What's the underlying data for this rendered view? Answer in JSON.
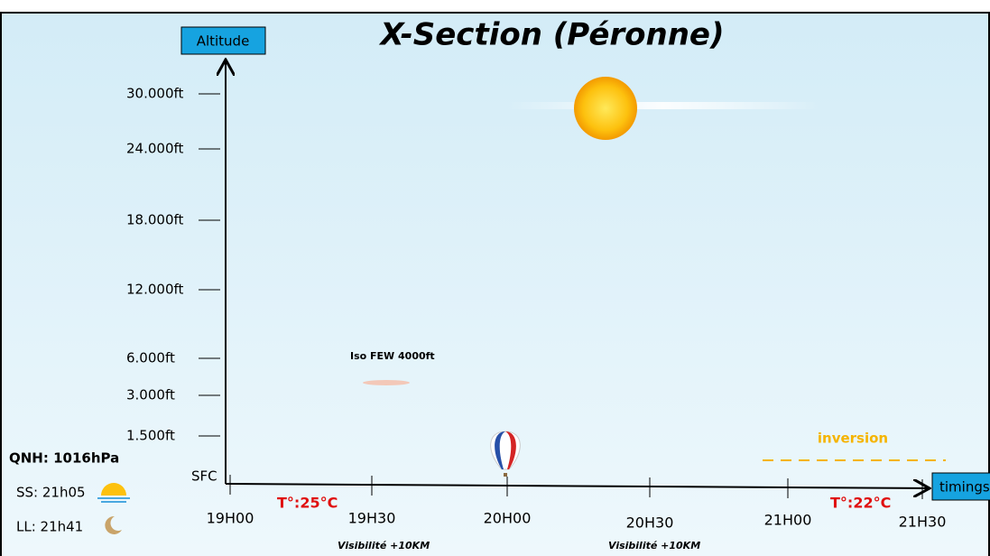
{
  "title": "X-Section (Péronne)",
  "axes": {
    "y_label": "Altitude",
    "x_label": "timings",
    "y_ticks": [
      "30.000ft",
      "24.000ft",
      "18.000ft",
      "12.000ft",
      "6.000ft",
      "3.000ft",
      "1.500ft",
      "SFC"
    ],
    "x_ticks": [
      "19H00",
      "19H30",
      "20H00",
      "20H30",
      "21H00",
      "21H30"
    ]
  },
  "annotations": {
    "cloud": "Iso FEW 4000ft",
    "inversion": "inversion",
    "temp_start": "T°:25°C",
    "temp_end": "T°:22°C",
    "visibility_1": "Visibilité +10KM",
    "visibility_2": "Visibilité +10KM"
  },
  "sidebar": {
    "qnh": "QNH: 1016hPa",
    "sunset": "SS: 21h05",
    "moon": "LL: 21h41"
  }
}
